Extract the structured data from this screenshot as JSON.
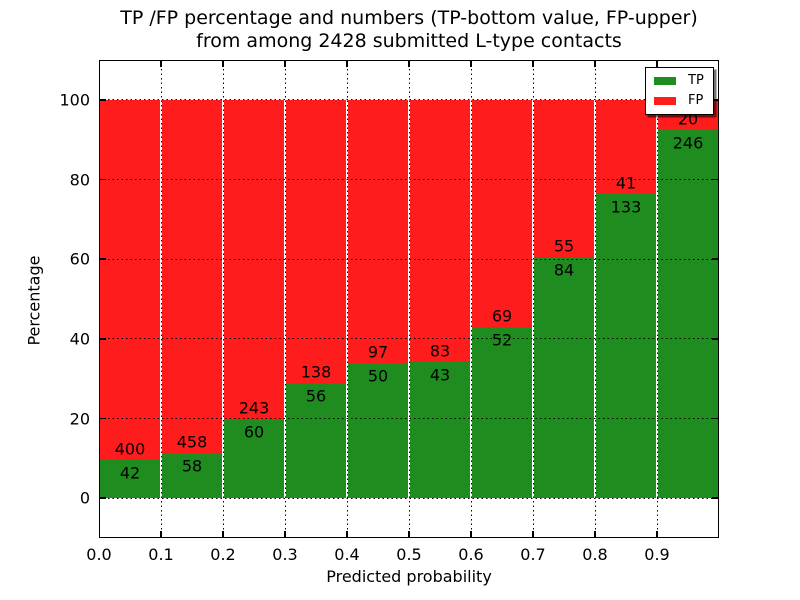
{
  "title": {
    "line1": "TP /FP percentage and numbers (TP-bottom value, FP-upper)",
    "line2": "from among 2428 submitted L-type contacts"
  },
  "chart_data": {
    "type": "bar",
    "stacked": true,
    "normalized_to_percent": true,
    "title": "TP /FP percentage and numbers (TP-bottom value, FP-upper) from among 2428 submitted L-type contacts",
    "xlabel": "Predicted probability",
    "ylabel": "Percentage",
    "total_contacts": 2428,
    "categories": [
      "0.0-0.1",
      "0.1-0.2",
      "0.2-0.3",
      "0.3-0.4",
      "0.4-0.5",
      "0.5-0.6",
      "0.6-0.7",
      "0.7-0.8",
      "0.8-0.9",
      "0.9-1.0"
    ],
    "series": [
      {
        "name": "TP",
        "color": "#1e8c1e",
        "values": [
          42,
          58,
          60,
          56,
          50,
          43,
          52,
          84,
          133,
          246
        ]
      },
      {
        "name": "FP",
        "color": "#ff1c1c",
        "values": [
          400,
          458,
          243,
          138,
          97,
          83,
          69,
          55,
          41,
          20
        ]
      }
    ],
    "x_ticks": [
      "0.0",
      "0.1",
      "0.2",
      "0.3",
      "0.4",
      "0.5",
      "0.6",
      "0.7",
      "0.8",
      "0.9"
    ],
    "y_ticks": [
      "0",
      "20",
      "40",
      "60",
      "80",
      "100"
    ],
    "y_tick_values": [
      0,
      20,
      40,
      60,
      80,
      100
    ],
    "xlim": [
      0.0,
      1.0
    ],
    "ylim": [
      -10,
      110
    ],
    "grid": "dotted",
    "legend": {
      "position": "upper right",
      "entries": [
        {
          "label": "TP",
          "color": "#1e8c1e"
        },
        {
          "label": "FP",
          "color": "#ff1c1c"
        }
      ]
    }
  }
}
